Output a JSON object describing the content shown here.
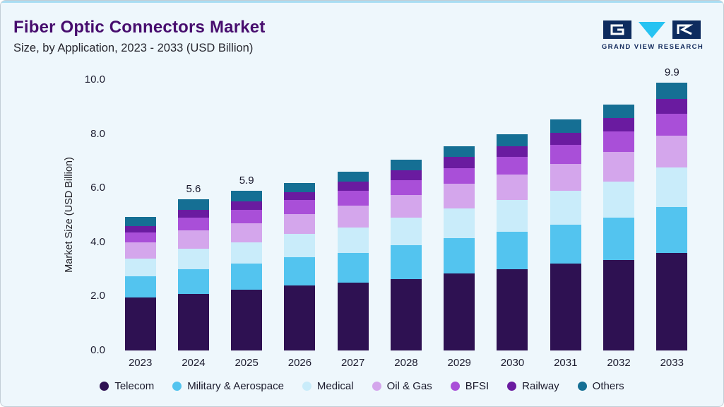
{
  "header": {
    "title": "Fiber Optic Connectors Market",
    "subtitle": "Size, by Application, 2023 - 2033 (USD Billion)",
    "logo_text": "GRAND VIEW RESEARCH"
  },
  "colors": {
    "accent_bar": "#a9ddf3",
    "title": "#470d6e",
    "background": "#eef7fc",
    "logo_navy": "#0e2b5e",
    "logo_cyan": "#27c3f2"
  },
  "chart_data": {
    "type": "bar",
    "stacked": true,
    "title": "Fiber Optic Connectors Market Size, by Application, 2023 - 2033 (USD Billion)",
    "xlabel": "",
    "ylabel": "Market Size (USD Billion)",
    "ylim": [
      0,
      10
    ],
    "ytick_labels": [
      "0.0",
      "2.0",
      "4.0",
      "6.0",
      "8.0",
      "10.0"
    ],
    "grid": false,
    "legend_position": "bottom",
    "categories": [
      "2023",
      "2024",
      "2025",
      "2026",
      "2027",
      "2028",
      "2029",
      "2030",
      "2031",
      "2032",
      "2033"
    ],
    "bar_labels": [
      "",
      "5.6",
      "5.9",
      "",
      "",
      "",
      "",
      "",
      "",
      "",
      "9.9"
    ],
    "series": [
      {
        "name": "Telecom",
        "color": "#2e1152",
        "values": [
          1.95,
          2.1,
          2.25,
          2.4,
          2.5,
          2.65,
          2.85,
          3.0,
          3.2,
          3.35,
          3.6
        ]
      },
      {
        "name": "Military & Aerospace",
        "color": "#53c4ef",
        "values": [
          0.8,
          0.9,
          0.95,
          1.05,
          1.1,
          1.25,
          1.3,
          1.4,
          1.45,
          1.55,
          1.7
        ]
      },
      {
        "name": "Medical",
        "color": "#c9ecfa",
        "values": [
          0.65,
          0.75,
          0.8,
          0.85,
          0.95,
          1.0,
          1.1,
          1.15,
          1.25,
          1.35,
          1.45
        ]
      },
      {
        "name": "Oil & Gas",
        "color": "#d4a6ec",
        "values": [
          0.6,
          0.7,
          0.7,
          0.75,
          0.8,
          0.85,
          0.9,
          0.95,
          1.0,
          1.1,
          1.2
        ]
      },
      {
        "name": "BFSI",
        "color": "#a94fd8",
        "values": [
          0.35,
          0.45,
          0.5,
          0.5,
          0.55,
          0.55,
          0.6,
          0.65,
          0.7,
          0.75,
          0.8
        ]
      },
      {
        "name": "Railway",
        "color": "#6a1ba0",
        "values": [
          0.25,
          0.3,
          0.3,
          0.3,
          0.35,
          0.35,
          0.4,
          0.4,
          0.45,
          0.5,
          0.55
        ]
      },
      {
        "name": "Others",
        "color": "#156f94",
        "values": [
          0.35,
          0.4,
          0.4,
          0.35,
          0.35,
          0.4,
          0.4,
          0.45,
          0.5,
          0.5,
          0.6
        ]
      }
    ]
  }
}
